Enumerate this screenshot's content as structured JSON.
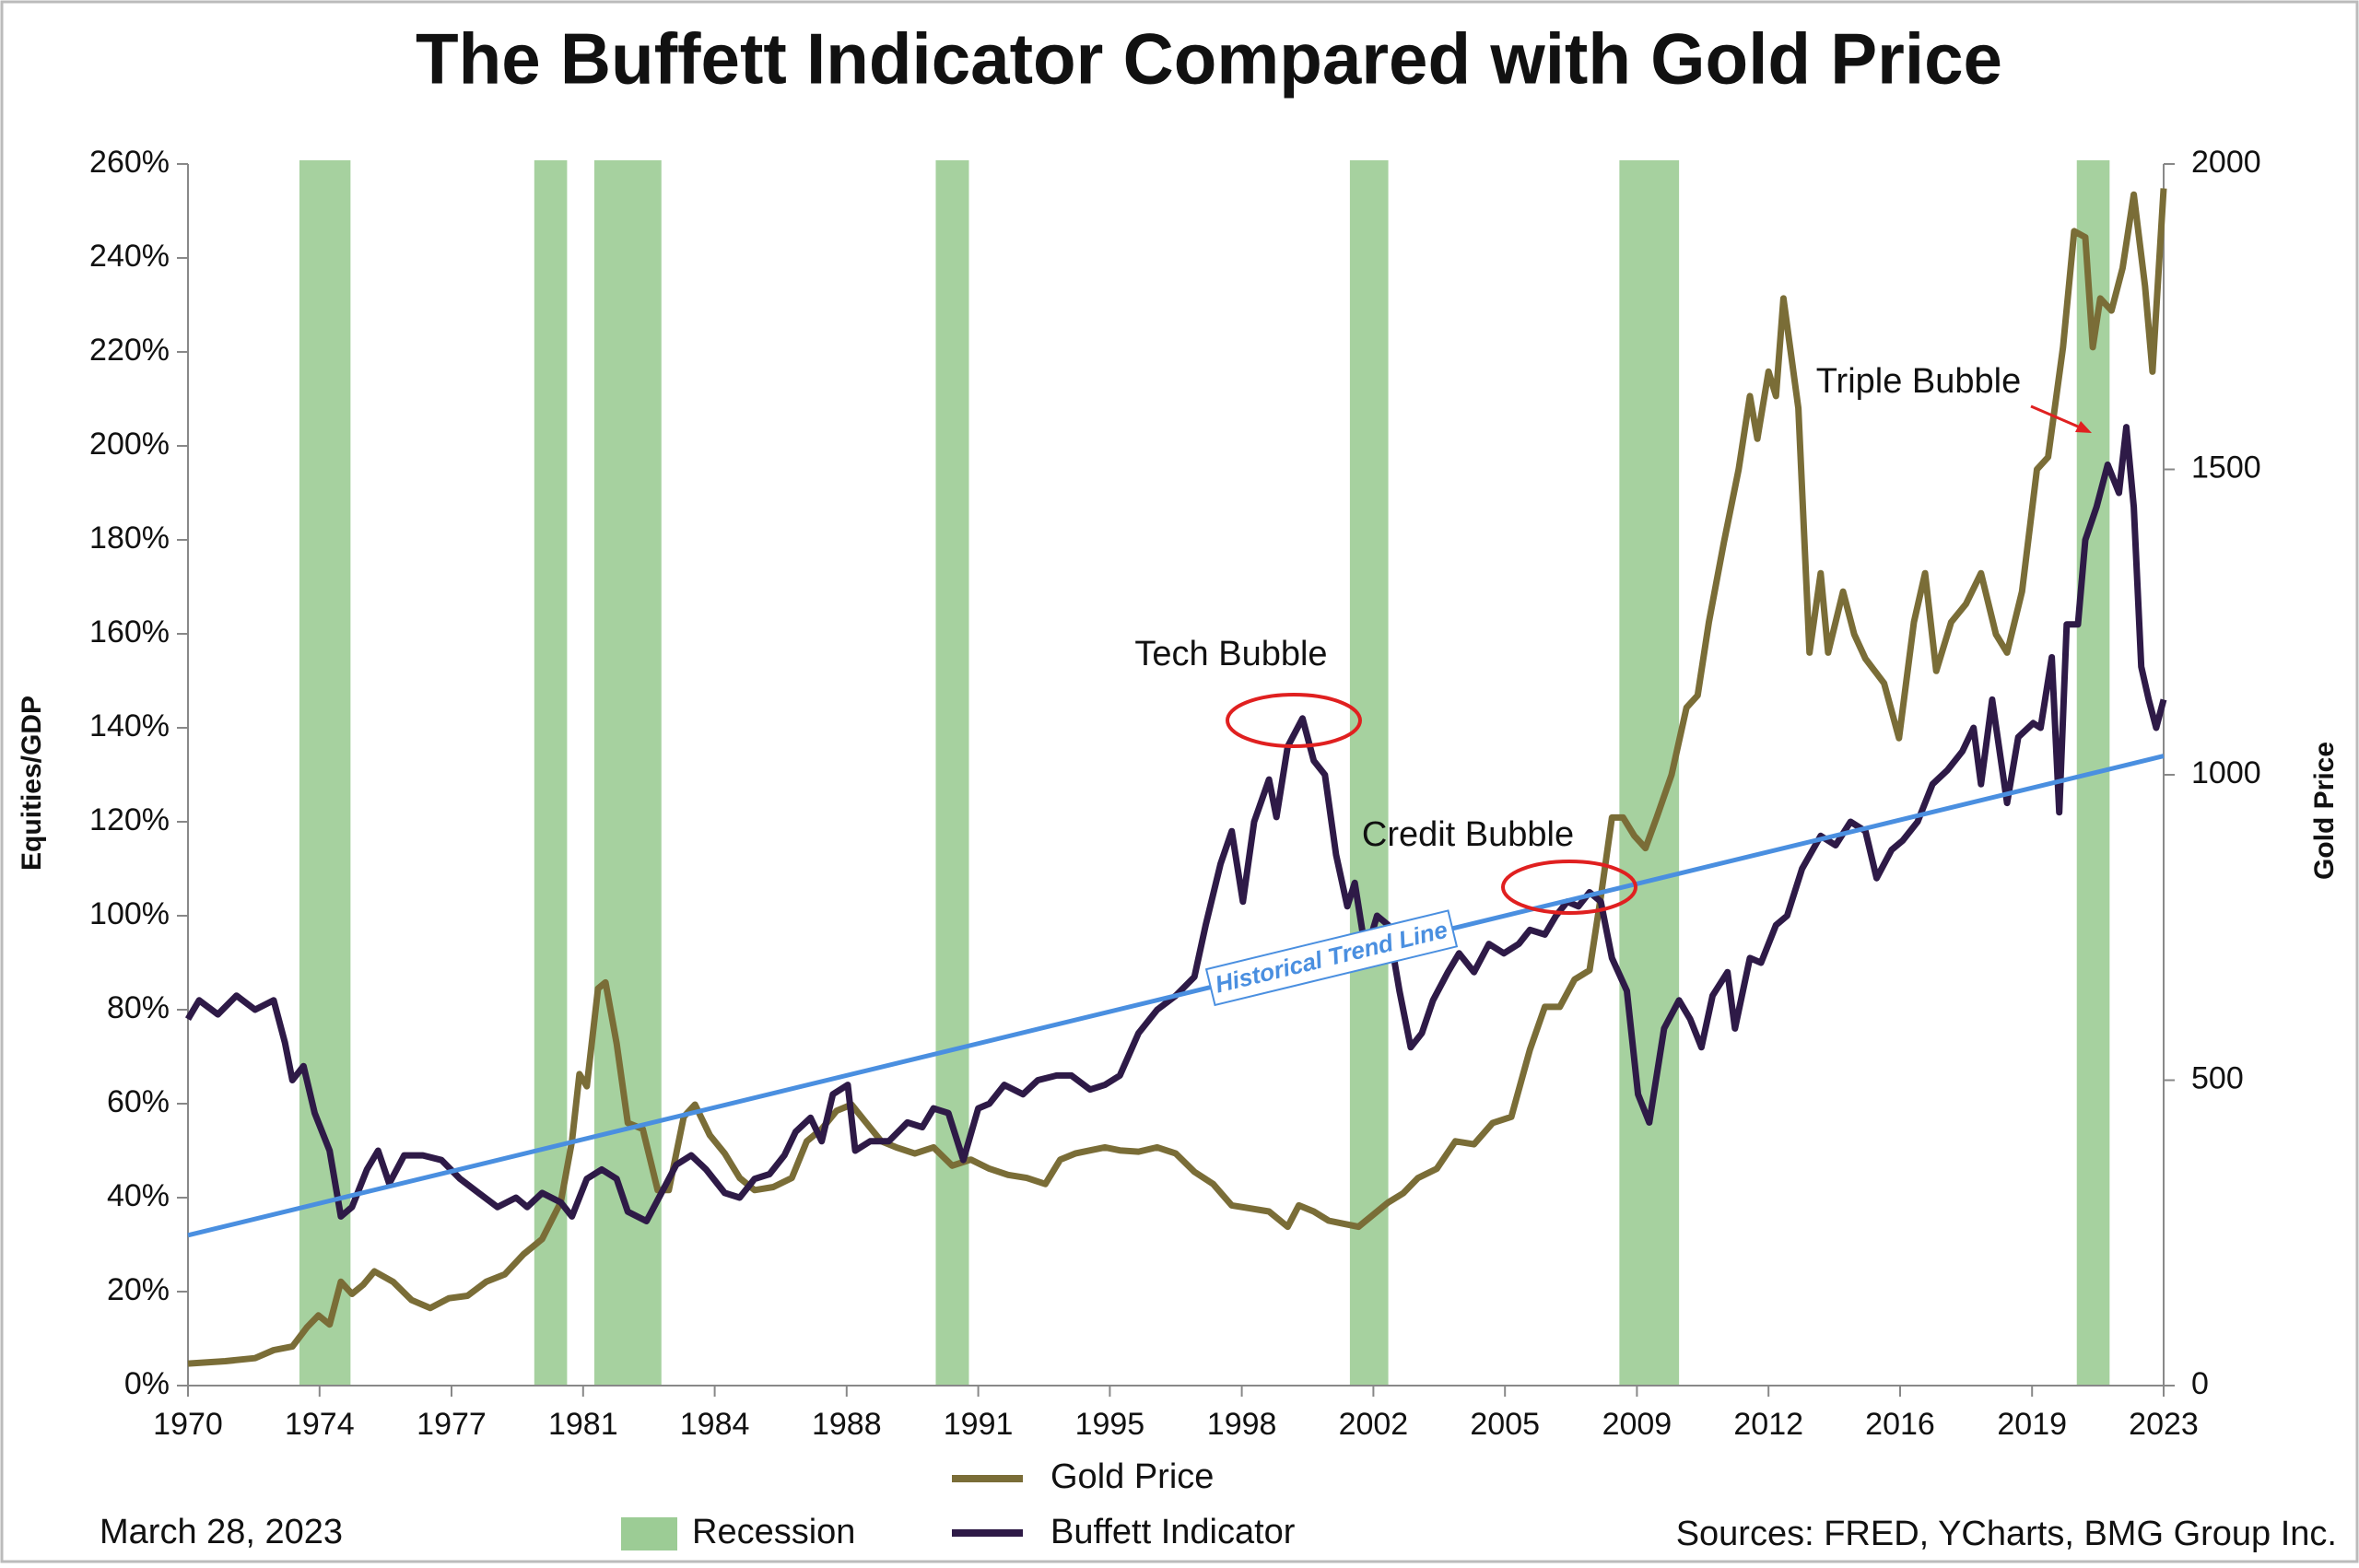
{
  "chart_data": {
    "type": "line",
    "title": "The Buffett Indicator Compared with Gold Price",
    "ylabel": "Equities/GDP",
    "y2label": "Gold Price",
    "xlim": [
      1970,
      2023
    ],
    "xticks": [
      1970,
      {
        "value": 1973.53,
        "label": "1974"
      },
      {
        "value": 1977.07,
        "label": "1977"
      },
      {
        "value": 1980.6,
        "label": "1981"
      },
      {
        "value": 1984.13,
        "label": "1984"
      },
      {
        "value": 1987.67,
        "label": "1988"
      },
      {
        "value": 1991.2,
        "label": "1991"
      },
      {
        "value": 1994.73,
        "label": "1995"
      },
      {
        "value": 1998.27,
        "label": "1998"
      },
      {
        "value": 2001.8,
        "label": "2002"
      },
      {
        "value": 2005.33,
        "label": "2005"
      },
      {
        "value": 2008.87,
        "label": "2009"
      },
      {
        "value": 2012.4,
        "label": "2012"
      },
      {
        "value": 2015.93,
        "label": "2016"
      },
      {
        "value": 2019.47,
        "label": "2019"
      },
      2023
    ],
    "ylim": [
      0,
      260
    ],
    "yticks": [
      {
        "value": 0,
        "label": "0%"
      },
      {
        "value": 20,
        "label": "20%"
      },
      {
        "value": 40,
        "label": "40%"
      },
      {
        "value": 60,
        "label": "60%"
      },
      {
        "value": 80,
        "label": "80%"
      },
      {
        "value": 100,
        "label": "100%"
      },
      {
        "value": 120,
        "label": "120%"
      },
      {
        "value": 140,
        "label": "140%"
      },
      {
        "value": 160,
        "label": "160%"
      },
      {
        "value": 180,
        "label": "180%"
      },
      {
        "value": 200,
        "label": "200%"
      },
      {
        "value": 220,
        "label": "220%"
      },
      {
        "value": 240,
        "label": "240%"
      },
      {
        "value": 260,
        "label": "260%"
      }
    ],
    "y2lim": [
      0,
      2000
    ],
    "y2ticks": [
      0,
      500,
      1000,
      1500,
      2000
    ],
    "grid": false,
    "recessions": {
      "name": "Recession",
      "color": "#9ccc95",
      "ranges": [
        [
          1972.99,
          1974.36
        ],
        [
          1979.29,
          1980.17
        ],
        [
          1980.9,
          1982.7
        ],
        [
          1990.06,
          1990.95
        ],
        [
          2001.17,
          2002.2
        ],
        [
          2008.4,
          2010.0
        ],
        [
          2020.67,
          2021.55
        ]
      ]
    },
    "trend_line": {
      "label": "Historical Trend Line",
      "color": "#4a8fe0",
      "x": [
        1970,
        2023
      ],
      "values": [
        32,
        134
      ]
    },
    "series": [
      {
        "name": "Gold Price",
        "color": "#7a6d37",
        "axis": "y2",
        "x": [
          1970,
          1971,
          1971.8,
          1972.3,
          1972.8,
          1973.2,
          1973.5,
          1973.8,
          1974.1,
          1974.4,
          1974.7,
          1975.0,
          1975.5,
          1976.0,
          1976.5,
          1977.0,
          1977.5,
          1978.0,
          1978.5,
          1979.0,
          1979.5,
          1980.0,
          1980.3,
          1980.5,
          1980.7,
          1981.0,
          1981.2,
          1981.5,
          1981.8,
          1982.2,
          1982.6,
          1982.9,
          1983.3,
          1983.6,
          1984.0,
          1984.4,
          1984.8,
          1985.2,
          1985.7,
          1986.2,
          1986.6,
          1987.0,
          1987.4,
          1987.8,
          1988.2,
          1988.6,
          1989.0,
          1989.5,
          1990.0,
          1990.5,
          1991.0,
          1991.5,
          1992.0,
          1992.5,
          1993.0,
          1993.4,
          1993.8,
          1994.2,
          1994.6,
          1995.0,
          1995.5,
          1996.0,
          1996.5,
          1997.0,
          1997.5,
          1998.0,
          1998.5,
          1999.0,
          1999.5,
          1999.8,
          2000.2,
          2000.6,
          2001.0,
          2001.4,
          2001.8,
          2002.2,
          2002.6,
          2003.0,
          2003.5,
          2004.0,
          2004.5,
          2005.0,
          2005.5,
          2006.0,
          2006.4,
          2006.8,
          2007.2,
          2007.6,
          2007.9,
          2008.2,
          2008.5,
          2008.8,
          2009.1,
          2009.4,
          2009.8,
          2010.2,
          2010.5,
          2010.8,
          2011.2,
          2011.6,
          2011.9,
          2012.1,
          2012.4,
          2012.6,
          2012.8,
          2013.2,
          2013.5,
          2013.8,
          2014.0,
          2014.4,
          2014.7,
          2015.0,
          2015.5,
          2015.9,
          2016.3,
          2016.6,
          2016.9,
          2017.3,
          2017.7,
          2018.1,
          2018.5,
          2018.8,
          2019.2,
          2019.6,
          2019.9,
          2020.3,
          2020.6,
          2020.9,
          2021.1,
          2021.3,
          2021.6,
          2021.9,
          2022.2,
          2022.5,
          2022.7,
          2023.0
        ],
        "values": [
          36,
          40,
          45,
          58,
          64,
          96,
          115,
          100,
          170,
          150,
          165,
          187,
          170,
          140,
          127,
          143,
          147,
          170,
          182,
          215,
          240,
          300,
          400,
          510,
          490,
          650,
          660,
          560,
          430,
          420,
          320,
          320,
          440,
          460,
          410,
          380,
          340,
          320,
          325,
          340,
          400,
          420,
          450,
          460,
          430,
          400,
          390,
          380,
          390,
          360,
          370,
          355,
          345,
          340,
          330,
          370,
          380,
          385,
          390,
          385,
          383,
          390,
          380,
          350,
          330,
          295,
          290,
          285,
          260,
          295,
          285,
          270,
          265,
          260,
          280,
          300,
          315,
          340,
          355,
          400,
          395,
          430,
          440,
          550,
          620,
          620,
          665,
          680,
          800,
          930,
          930,
          900,
          880,
          930,
          1000,
          1110,
          1130,
          1250,
          1380,
          1500,
          1620,
          1550,
          1660,
          1620,
          1780,
          1600,
          1200,
          1330,
          1200,
          1300,
          1230,
          1190,
          1150,
          1060,
          1250,
          1330,
          1170,
          1250,
          1280,
          1330,
          1230,
          1200,
          1300,
          1500,
          1520,
          1700,
          1890,
          1880,
          1700,
          1780,
          1760,
          1830,
          1950,
          1800,
          1660,
          1960
        ]
      },
      {
        "name": "Buffett Indicator",
        "color": "#2e1a47",
        "x": [
          1970.0,
          1970.3,
          1970.8,
          1971.3,
          1971.8,
          1972.3,
          1972.6,
          1972.8,
          1973.1,
          1973.4,
          1973.8,
          1974.1,
          1974.4,
          1974.8,
          1975.1,
          1975.4,
          1975.8,
          1976.3,
          1976.8,
          1977.3,
          1977.8,
          1978.3,
          1978.8,
          1979.1,
          1979.5,
          1980.0,
          1980.3,
          1980.7,
          1981.1,
          1981.5,
          1981.8,
          1982.3,
          1982.7,
          1983.1,
          1983.5,
          1983.9,
          1984.4,
          1984.8,
          1985.2,
          1985.6,
          1986.0,
          1986.3,
          1986.7,
          1987.0,
          1987.3,
          1987.7,
          1987.9,
          1988.3,
          1988.8,
          1989.3,
          1989.7,
          1990.0,
          1990.4,
          1990.8,
          1991.2,
          1991.5,
          1991.9,
          1992.4,
          1992.8,
          1993.3,
          1993.7,
          1994.2,
          1994.6,
          1995.0,
          1995.5,
          1996.0,
          1996.5,
          1997.0,
          1997.3,
          1997.7,
          1998.0,
          1998.3,
          1998.6,
          1999.0,
          1999.2,
          1999.5,
          1999.9,
          2000.2,
          2000.5,
          2000.8,
          2001.1,
          2001.3,
          2001.6,
          2001.9,
          2002.2,
          2002.5,
          2002.8,
          2003.1,
          2003.4,
          2003.8,
          2004.1,
          2004.5,
          2004.9,
          2005.3,
          2005.7,
          2006.0,
          2006.4,
          2006.7,
          2007.0,
          2007.3,
          2007.6,
          2007.9,
          2008.2,
          2008.6,
          2008.9,
          2009.2,
          2009.6,
          2010.0,
          2010.3,
          2010.6,
          2010.9,
          2011.3,
          2011.5,
          2011.9,
          2012.2,
          2012.6,
          2012.9,
          2013.3,
          2013.8,
          2014.2,
          2014.6,
          2015.0,
          2015.3,
          2015.7,
          2016.0,
          2016.4,
          2016.8,
          2017.2,
          2017.6,
          2017.9,
          2018.1,
          2018.4,
          2018.8,
          2019.1,
          2019.5,
          2019.7,
          2020.0,
          2020.2,
          2020.4,
          2020.7,
          2020.9,
          2021.2,
          2021.5,
          2021.8,
          2022.0,
          2022.2,
          2022.4,
          2022.6,
          2022.8,
          2023.0
        ],
        "values": [
          78,
          82,
          79,
          83,
          80,
          82,
          73,
          65,
          68,
          58,
          50,
          36,
          38,
          46,
          50,
          43,
          49,
          49,
          48,
          44,
          41,
          38,
          40,
          38,
          41,
          39,
          36,
          44,
          46,
          44,
          37,
          35,
          41,
          47,
          49,
          46,
          41,
          40,
          44,
          45,
          49,
          54,
          57,
          52,
          62,
          64,
          50,
          52,
          52,
          56,
          55,
          59,
          58,
          48,
          59,
          60,
          64,
          62,
          65,
          66,
          66,
          63,
          64,
          66,
          75,
          80,
          83,
          87,
          98,
          111,
          118,
          103,
          120,
          129,
          121,
          136,
          142,
          133,
          130,
          113,
          102,
          107,
          92,
          100,
          98,
          84,
          72,
          75,
          82,
          88,
          92,
          88,
          94,
          92,
          94,
          97,
          96,
          100,
          103,
          102,
          105,
          103,
          91,
          84,
          62,
          56,
          76,
          82,
          78,
          72,
          83,
          88,
          76,
          91,
          90,
          98,
          100,
          110,
          117,
          115,
          120,
          118,
          108,
          114,
          116,
          120,
          128,
          131,
          135,
          140,
          128,
          146,
          124,
          138,
          141,
          140,
          155,
          122,
          162,
          162,
          180,
          187,
          196,
          190,
          204,
          187,
          153,
          146,
          140,
          146
        ]
      }
    ],
    "annotations": [
      "Tech Bubble",
      "Credit Bubble",
      "Triple Bubble"
    ],
    "date": "March 28, 2023",
    "source": "Sources: FRED, YCharts, BMG Group Inc."
  }
}
